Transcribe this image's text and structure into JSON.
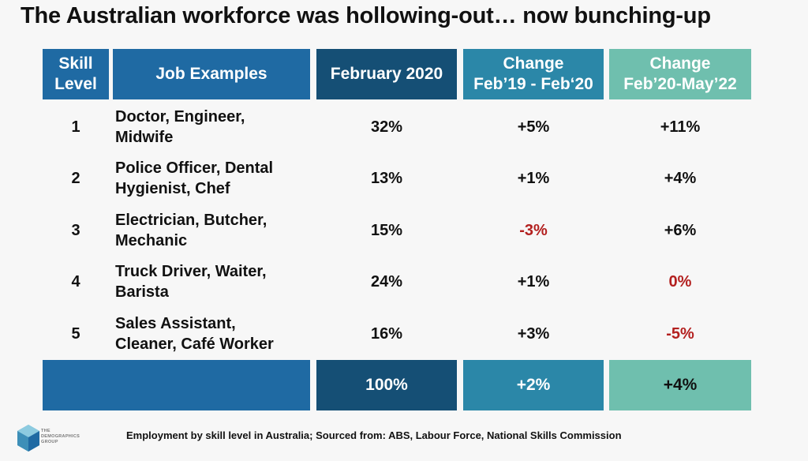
{
  "title": "The Australian workforce was hollowing-out… now bunching-up",
  "chart_data": {
    "type": "table",
    "columns": [
      {
        "lines": [
          "Skill",
          "Level"
        ]
      },
      {
        "lines": [
          "Job Examples"
        ]
      },
      {
        "lines": [
          "February 2020"
        ]
      },
      {
        "lines": [
          "Change",
          "Feb’19 - Feb‘20"
        ]
      },
      {
        "lines": [
          "Change",
          "Feb’20-May’22"
        ]
      }
    ],
    "rows": [
      {
        "level": "1",
        "jobs": [
          "Doctor, Engineer,",
          "Midwife"
        ],
        "feb2020": "32%",
        "change_19_20": "+5%",
        "change_20_22": "+11%"
      },
      {
        "level": "2",
        "jobs": [
          "Police Officer, Dental",
          "Hygienist, Chef"
        ],
        "feb2020": "13%",
        "change_19_20": "+1%",
        "change_20_22": "+4%"
      },
      {
        "level": "3",
        "jobs": [
          "Electrician, Butcher,",
          "Mechanic"
        ],
        "feb2020": "15%",
        "change_19_20": "-3%",
        "change_20_22": "+6%"
      },
      {
        "level": "4",
        "jobs": [
          "Truck Driver, Waiter,",
          "Barista"
        ],
        "feb2020": "24%",
        "change_19_20": "+1%",
        "change_20_22": "0%"
      },
      {
        "level": "5",
        "jobs": [
          "Sales Assistant,",
          "Cleaner, Café Worker"
        ],
        "feb2020": "16%",
        "change_19_20": "+3%",
        "change_20_22": "-5%"
      }
    ],
    "totals": {
      "feb2020": "100%",
      "change_19_20": "+2%",
      "change_20_22": "+4%"
    },
    "negative_values": [
      "-3%",
      "0%",
      "-5%"
    ]
  },
  "colors": {
    "header_blue": "#1f6aa3",
    "header_navy": "#154f75",
    "header_teal": "#2b87a8",
    "header_green": "#6fbfae",
    "negative_red": "#b3201f"
  },
  "logo": {
    "name": "demographics-group-logo",
    "text": [
      "THE",
      "DEMOGRAPHICS",
      "GROUP"
    ]
  },
  "source": "Employment by skill level in Australia; Sourced from: ABS, Labour Force, National Skills Commission"
}
